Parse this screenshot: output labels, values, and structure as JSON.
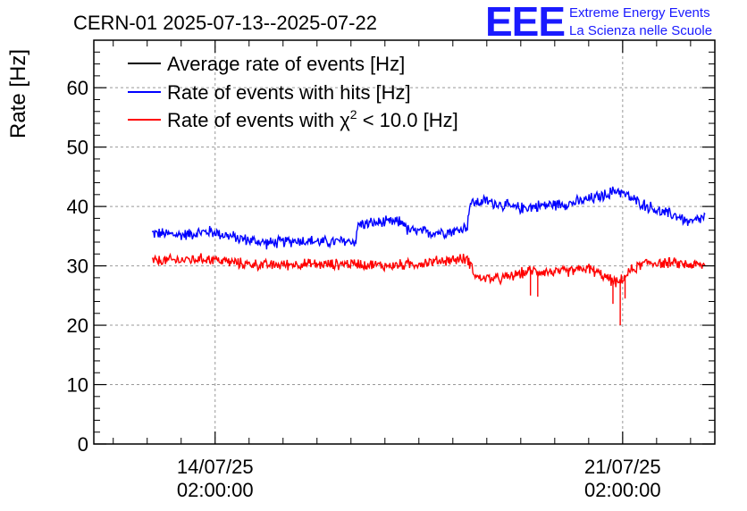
{
  "header": {
    "title": "CERN-01 2025-07-13--2025-07-22",
    "logo_text": "EEE",
    "logo_line1": "Extreme Energy Events",
    "logo_line2": "La Scienza nelle Scuole"
  },
  "colors": {
    "average": "#000000",
    "hits": "#0000ff",
    "chi2": "#ff0000",
    "logo": "#1a1aff",
    "grid": "#999999"
  },
  "chart_data": {
    "type": "line",
    "title": "CERN-01 2025-07-13--2025-07-22",
    "ylabel": "Rate [Hz]",
    "xlabel": "",
    "xlim": [
      "2025-07-12 00:00",
      "2025-07-22 16:00"
    ],
    "ylim": [
      0,
      68
    ],
    "grid": true,
    "legend_position": "top-left",
    "x_ticks": [
      {
        "value": "2025-07-14 02:00",
        "date": "14/07/25",
        "time": "02:00:00"
      },
      {
        "value": "2025-07-21 02:00",
        "date": "21/07/25",
        "time": "02:00:00"
      }
    ],
    "y_ticks": [
      0,
      10,
      20,
      30,
      40,
      50,
      60
    ],
    "legend": [
      {
        "key": "average",
        "label": "Average rate of events [Hz]"
      },
      {
        "key": "hits",
        "label": "Rate of events with hits [Hz]"
      },
      {
        "key": "chi2",
        "label_prefix": "Rate of events with ",
        "label_symbol": "χ",
        "label_sup": "2",
        "label_suffix": " < 10.0 [Hz]"
      }
    ],
    "series": [
      {
        "key": "hits",
        "name": "Rate of events with hits [Hz]",
        "noise": 1.2,
        "points": [
          [
            "2025-07-13 00:00",
            35.5
          ],
          [
            "2025-07-13 12:00",
            35.2
          ],
          [
            "2025-07-14 00:00",
            35.8
          ],
          [
            "2025-07-14 12:00",
            34.6
          ],
          [
            "2025-07-15 00:00",
            33.8
          ],
          [
            "2025-07-15 12:00",
            34.3
          ],
          [
            "2025-07-16 00:00",
            34.0
          ],
          [
            "2025-07-16 12:00",
            34.2
          ],
          [
            "2025-07-16 13:00",
            37.0
          ],
          [
            "2025-07-17 00:00",
            37.3
          ],
          [
            "2025-07-17 08:00",
            37.4
          ],
          [
            "2025-07-17 09:00",
            36.0
          ],
          [
            "2025-07-17 18:00",
            35.6
          ],
          [
            "2025-07-18 06:00",
            35.9
          ],
          [
            "2025-07-18 10:00",
            36.8
          ],
          [
            "2025-07-18 11:00",
            40.5
          ],
          [
            "2025-07-18 18:00",
            40.9
          ],
          [
            "2025-07-19 06:00",
            39.7
          ],
          [
            "2025-07-19 18:00",
            40.2
          ],
          [
            "2025-07-20 06:00",
            40.6
          ],
          [
            "2025-07-20 18:00",
            41.8
          ],
          [
            "2025-07-21 00:00",
            42.8
          ],
          [
            "2025-07-21 06:00",
            41.2
          ],
          [
            "2025-07-21 18:00",
            39.0
          ],
          [
            "2025-07-22 00:00",
            38.5
          ],
          [
            "2025-07-22 06:00",
            37.2
          ],
          [
            "2025-07-22 12:00",
            38.3
          ]
        ]
      },
      {
        "key": "chi2",
        "name": "Rate of events with χ2 < 10.0 [Hz]",
        "noise": 1.1,
        "points": [
          [
            "2025-07-13 00:00",
            30.8
          ],
          [
            "2025-07-13 12:00",
            31.0
          ],
          [
            "2025-07-14 00:00",
            31.2
          ],
          [
            "2025-07-14 12:00",
            30.4
          ],
          [
            "2025-07-15 00:00",
            30.1
          ],
          [
            "2025-07-15 12:00",
            30.3
          ],
          [
            "2025-07-16 00:00",
            30.2
          ],
          [
            "2025-07-16 12:00",
            30.4
          ],
          [
            "2025-07-17 00:00",
            30.0
          ],
          [
            "2025-07-17 12:00",
            30.3
          ],
          [
            "2025-07-18 00:00",
            30.9
          ],
          [
            "2025-07-18 10:00",
            31.2
          ],
          [
            "2025-07-18 14:00",
            28.0
          ],
          [
            "2025-07-19 00:00",
            27.8
          ],
          [
            "2025-07-19 12:00",
            29.2
          ],
          [
            "2025-07-20 00:00",
            28.9
          ],
          [
            "2025-07-20 12:00",
            29.6
          ],
          [
            "2025-07-21 00:00",
            27.0
          ],
          [
            "2025-07-21 06:00",
            29.4
          ],
          [
            "2025-07-21 12:00",
            30.6
          ],
          [
            "2025-07-22 00:00",
            30.4
          ],
          [
            "2025-07-22 12:00",
            30.0
          ]
        ],
        "spikes": [
          [
            "2025-07-19 12:00",
            25.0
          ],
          [
            "2025-07-19 15:00",
            24.8
          ],
          [
            "2025-07-20 22:00",
            23.6
          ],
          [
            "2025-07-21 01:00",
            20.0
          ],
          [
            "2025-07-21 03:00",
            24.5
          ]
        ]
      }
    ]
  }
}
